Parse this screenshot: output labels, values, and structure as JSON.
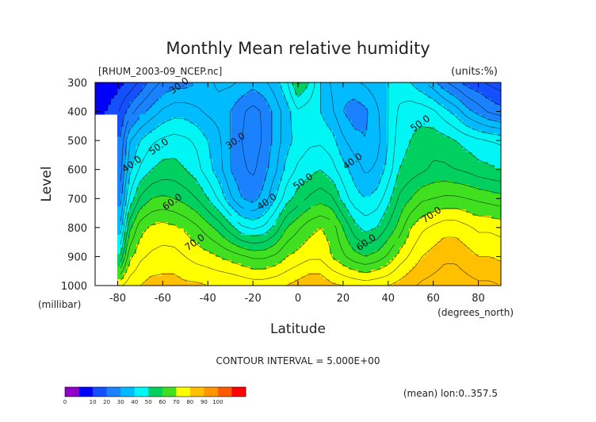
{
  "chart_data": {
    "type": "contour",
    "title": "Monthly Mean relative humidity",
    "file_label": "[RHUM_2003-09_NCEP.nc]",
    "units_label": "(units:%)",
    "ylabel": "Level",
    "yunit": "(millibar)",
    "xlabel": "Latitude",
    "xunit": "(degrees_north)",
    "xlim": [
      -90,
      90
    ],
    "ylim": [
      1000,
      300
    ],
    "x_ticks": [
      "-80",
      "-60",
      "-40",
      "-20",
      "0",
      "20",
      "40",
      "60",
      "80"
    ],
    "x_tick_values": [
      -80,
      -60,
      -40,
      -20,
      0,
      20,
      40,
      60,
      80
    ],
    "y_ticks": [
      "300",
      "400",
      "500",
      "600",
      "700",
      "800",
      "900",
      "1000"
    ],
    "y_tick_values": [
      300,
      400,
      500,
      600,
      700,
      800,
      900,
      1000
    ],
    "contour_interval_label": "CONTOUR INTERVAL = 5.000E+00",
    "mean_label": "(mean) lon:0..357.5",
    "contour_labels": [
      {
        "text": "30.0",
        "lat": -52,
        "lev": 320
      },
      {
        "text": "40.0",
        "lat": -73,
        "lev": 590
      },
      {
        "text": "50.0",
        "lat": -61,
        "lev": 530
      },
      {
        "text": "60.0",
        "lat": -55,
        "lev": 720
      },
      {
        "text": "70.0",
        "lat": -45,
        "lev": 860
      },
      {
        "text": "30.0",
        "lat": -27,
        "lev": 510
      },
      {
        "text": "40.0",
        "lat": -13,
        "lev": 720
      },
      {
        "text": "50.0",
        "lat": 3,
        "lev": 650
      },
      {
        "text": "40.0",
        "lat": 25,
        "lev": 580
      },
      {
        "text": "60.0",
        "lat": 31,
        "lev": 860
      },
      {
        "text": "50.0",
        "lat": 55,
        "lev": 450
      },
      {
        "text": "70.0",
        "lat": 60,
        "lev": 765
      }
    ],
    "colorbar": {
      "colors": [
        "#8f00c8",
        "#0000ff",
        "#1450ff",
        "#1a82ff",
        "#00bcff",
        "#00f5f5",
        "#00d060",
        "#40e020",
        "#ffff00",
        "#ffc000",
        "#ff9600",
        "#ff5a00",
        "#ff0000"
      ],
      "tick_labels": [
        "0",
        "10",
        "20",
        "30",
        "40",
        "50",
        "60",
        "70",
        "80",
        "90",
        "100"
      ]
    },
    "field": {
      "levels_mb": [
        1000,
        900,
        800,
        700,
        600,
        500,
        400,
        300
      ],
      "lats": [
        -90,
        -85,
        -80,
        -75,
        -70,
        -65,
        -60,
        -55,
        -50,
        -45,
        -40,
        -35,
        -30,
        -25,
        -20,
        -15,
        -10,
        -5,
        0,
        5,
        10,
        15,
        20,
        25,
        30,
        35,
        40,
        45,
        50,
        55,
        60,
        65,
        70,
        75,
        80,
        85,
        90
      ],
      "values": [
        [
          null,
          null,
          73,
          78,
          80,
          82,
          82,
          82,
          81,
          81,
          80,
          80,
          80,
          79,
          78,
          78,
          79,
          80,
          82,
          84,
          84,
          81,
          80,
          79,
          78,
          79,
          80,
          82,
          84,
          86,
          87,
          88,
          88,
          87,
          86,
          86,
          85
        ],
        [
          null,
          null,
          45,
          68,
          74,
          76,
          77,
          77,
          75,
          73,
          72,
          70,
          68,
          66,
          64,
          64,
          66,
          70,
          72,
          74,
          74,
          70,
          66,
          62,
          60,
          62,
          66,
          72,
          76,
          80,
          82,
          84,
          84,
          82,
          80,
          80,
          79
        ],
        [
          null,
          null,
          30,
          58,
          68,
          71,
          72,
          71,
          69,
          66,
          62,
          58,
          52,
          46,
          44,
          46,
          52,
          60,
          64,
          68,
          70,
          68,
          60,
          52,
          48,
          50,
          56,
          62,
          70,
          74,
          76,
          78,
          78,
          76,
          74,
          74,
          73
        ],
        [
          null,
          null,
          22,
          45,
          56,
          60,
          61,
          60,
          58,
          55,
          50,
          44,
          36,
          30,
          28,
          32,
          40,
          48,
          52,
          56,
          58,
          56,
          48,
          42,
          40,
          42,
          48,
          56,
          60,
          64,
          65,
          66,
          66,
          65,
          64,
          63,
          62
        ],
        [
          null,
          null,
          18,
          38,
          46,
          50,
          52,
          52,
          50,
          47,
          42,
          37,
          30,
          26,
          24,
          28,
          34,
          42,
          46,
          48,
          50,
          47,
          42,
          38,
          34,
          36,
          42,
          50,
          52,
          54,
          56,
          56,
          55,
          54,
          52,
          51,
          50
        ],
        [
          null,
          null,
          16,
          34,
          40,
          44,
          46,
          47,
          46,
          44,
          40,
          36,
          30,
          25,
          22,
          26,
          32,
          38,
          42,
          44,
          44,
          42,
          36,
          32,
          30,
          33,
          40,
          48,
          50,
          52,
          53,
          52,
          50,
          48,
          46,
          45,
          44
        ],
        [
          8,
          10,
          14,
          22,
          28,
          32,
          36,
          38,
          38,
          36,
          34,
          33,
          30,
          26,
          23,
          26,
          32,
          38,
          44,
          42,
          40,
          36,
          30,
          27,
          29,
          34,
          40,
          46,
          48,
          48,
          46,
          42,
          38,
          32,
          28,
          24,
          22
        ],
        [
          6,
          7,
          8,
          11,
          16,
          22,
          26,
          28,
          28,
          30,
          34,
          36,
          36,
          34,
          32,
          34,
          38,
          44,
          56,
          50,
          40,
          34,
          32,
          34,
          36,
          38,
          40,
          42,
          40,
          36,
          32,
          26,
          22,
          18,
          16,
          14,
          12
        ]
      ]
    }
  }
}
